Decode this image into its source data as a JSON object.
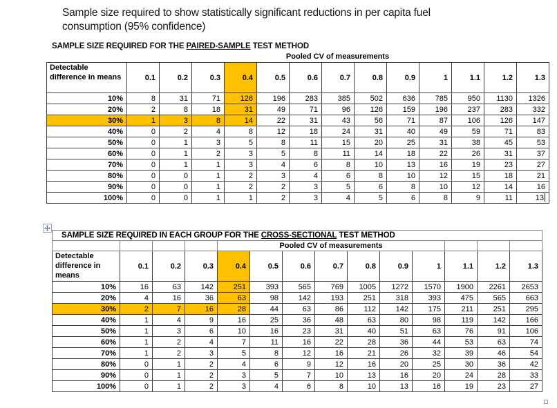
{
  "document": {
    "title": "Sample size required to show statistically significant reductions in per capita fuel consumption (95% confidence)"
  },
  "colors": {
    "highlight": "#FFC000",
    "grid_border": "#3f3f3f",
    "outer_row_border": "#7f7f7f"
  },
  "icons": {
    "move_handle": "table-move-handle",
    "resize_handle": "table-resize-handle"
  },
  "tables": [
    {
      "id": "paired",
      "heading": {
        "prefix": "SAMPLE SIZE REQUIRED FOR THE ",
        "underlined": "PAIRED-SAMPLE",
        "suffix": " TEST METHOD"
      },
      "cv_label": "Pooled CV of measurements",
      "corner_label": "Detectable difference in means",
      "cv_values": [
        "0.1",
        "0.2",
        "0.3",
        "0.4",
        "0.5",
        "0.6",
        "0.7",
        "0.8",
        "0.9",
        "1",
        "1.1",
        "1.2",
        "1.3"
      ],
      "row_labels": [
        "10%",
        "20%",
        "30%",
        "40%",
        "50%",
        "60%",
        "70%",
        "80%",
        "90%",
        "100%"
      ],
      "rows": [
        [
          8,
          31,
          71,
          126,
          196,
          283,
          385,
          502,
          636,
          785,
          950,
          1130,
          1326
        ],
        [
          2,
          8,
          18,
          31,
          49,
          71,
          96,
          126,
          159,
          196,
          237,
          283,
          332
        ],
        [
          1,
          3,
          8,
          14,
          22,
          31,
          43,
          56,
          71,
          87,
          106,
          126,
          147
        ],
        [
          0,
          2,
          4,
          8,
          12,
          18,
          24,
          31,
          40,
          49,
          59,
          71,
          83
        ],
        [
          0,
          1,
          3,
          5,
          8,
          11,
          15,
          20,
          25,
          31,
          38,
          45,
          53
        ],
        [
          0,
          1,
          2,
          3,
          5,
          8,
          11,
          14,
          18,
          22,
          26,
          31,
          37
        ],
        [
          0,
          1,
          1,
          3,
          4,
          6,
          8,
          10,
          13,
          16,
          19,
          23,
          27
        ],
        [
          0,
          0,
          1,
          2,
          3,
          4,
          6,
          8,
          10,
          12,
          15,
          18,
          21
        ],
        [
          0,
          0,
          1,
          2,
          2,
          3,
          5,
          6,
          8,
          10,
          12,
          14,
          16
        ],
        [
          0,
          0,
          1,
          1,
          2,
          3,
          4,
          5,
          6,
          8,
          9,
          11,
          13
        ]
      ],
      "highlight": {
        "col_index": 3,
        "row_index": 2
      },
      "heading_in_table": false,
      "cursor_in_last_cell": true
    },
    {
      "id": "cross",
      "heading": {
        "prefix": "SAMPLE SIZE REQUIRED IN EACH GROUP FOR THE ",
        "underlined": "CROSS-SECTIONAL",
        "suffix": " TEST METHOD"
      },
      "cv_label": "Pooled CV of measurements",
      "corner_label": "Detectable difference in means",
      "cv_values": [
        "0.1",
        "0.2",
        "0.3",
        "0.4",
        "0.5",
        "0.6",
        "0.7",
        "0.8",
        "0.9",
        "1",
        "1.1",
        "1.2",
        "1.3"
      ],
      "row_labels": [
        "10%",
        "20%",
        "30%",
        "40%",
        "50%",
        "60%",
        "70%",
        "80%",
        "90%",
        "100%"
      ],
      "rows": [
        [
          16,
          63,
          142,
          251,
          393,
          565,
          769,
          1005,
          1272,
          1570,
          1900,
          2261,
          2653
        ],
        [
          4,
          16,
          36,
          63,
          98,
          142,
          193,
          251,
          318,
          393,
          475,
          565,
          663
        ],
        [
          2,
          7,
          16,
          28,
          44,
          63,
          86,
          112,
          142,
          175,
          211,
          251,
          295
        ],
        [
          1,
          4,
          9,
          16,
          25,
          36,
          48,
          63,
          80,
          98,
          119,
          142,
          166
        ],
        [
          1,
          3,
          6,
          10,
          16,
          23,
          31,
          40,
          51,
          63,
          76,
          91,
          106
        ],
        [
          1,
          2,
          4,
          7,
          11,
          16,
          22,
          28,
          36,
          44,
          53,
          63,
          74
        ],
        [
          1,
          2,
          3,
          5,
          8,
          12,
          16,
          21,
          26,
          32,
          39,
          46,
          54
        ],
        [
          0,
          1,
          2,
          4,
          6,
          9,
          12,
          16,
          20,
          25,
          30,
          36,
          42
        ],
        [
          0,
          1,
          2,
          3,
          5,
          7,
          10,
          13,
          16,
          20,
          24,
          28,
          33
        ],
        [
          0,
          1,
          2,
          3,
          4,
          6,
          8,
          10,
          13,
          16,
          19,
          23,
          27
        ]
      ],
      "highlight": {
        "col_index": 3,
        "row_index": 2
      },
      "heading_in_table": true,
      "cursor_in_last_cell": false
    }
  ]
}
